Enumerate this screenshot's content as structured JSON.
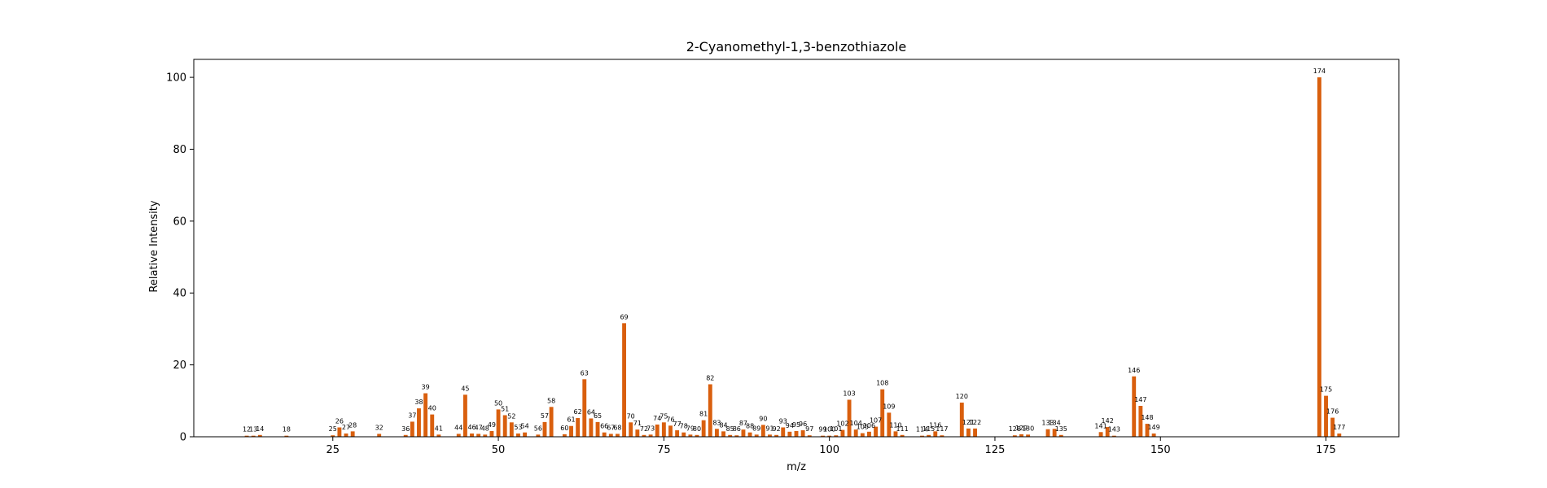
{
  "chart_data": {
    "type": "bar",
    "title": "2-Cyanomethyl-1,3-benzothiazole",
    "xlabel": "m/z",
    "ylabel": "Relative Intensity",
    "xlim": [
      4,
      186
    ],
    "ylim": [
      0,
      105
    ],
    "xticks": [
      25,
      50,
      75,
      100,
      125,
      150,
      175
    ],
    "yticks": [
      0,
      20,
      40,
      60,
      80,
      100
    ],
    "grid": false,
    "bar_color": "#d95f0e",
    "series": [
      {
        "x": [
          12,
          13,
          14,
          18,
          25,
          26,
          27,
          28,
          32,
          36,
          37,
          38,
          39,
          40,
          41,
          44,
          45,
          46,
          47,
          48,
          49,
          50,
          51,
          52,
          53,
          54,
          56,
          57,
          58,
          60,
          61,
          62,
          63,
          64,
          65,
          66,
          67,
          68,
          69,
          70,
          71,
          72,
          73,
          74,
          75,
          76,
          77,
          78,
          79,
          80,
          81,
          82,
          83,
          84,
          85,
          86,
          87,
          88,
          89,
          90,
          91,
          92,
          93,
          94,
          95,
          96,
          97,
          99,
          100,
          101,
          102,
          103,
          104,
          105,
          106,
          107,
          108,
          109,
          110,
          111,
          114,
          115,
          116,
          117,
          120,
          121,
          122,
          128,
          129,
          130,
          133,
          134,
          135,
          141,
          142,
          143,
          146,
          147,
          148,
          149,
          174,
          175,
          176,
          177
        ],
        "values": [
          0.3,
          0.3,
          0.5,
          0.3,
          0.4,
          2.6,
          0.9,
          1.5,
          0.8,
          0.5,
          4.2,
          7.9,
          12.1,
          6.2,
          0.6,
          0.8,
          11.7,
          0.9,
          0.8,
          0.6,
          1.6,
          7.6,
          6.0,
          4.0,
          0.9,
          1.2,
          0.6,
          4.1,
          8.3,
          0.7,
          3.0,
          5.2,
          16.0,
          5.1,
          4.1,
          1.2,
          0.8,
          0.8,
          31.6,
          4.0,
          2.0,
          0.5,
          0.6,
          3.4,
          4.0,
          3.1,
          1.8,
          1.2,
          0.6,
          0.5,
          4.6,
          14.6,
          2.2,
          1.5,
          0.5,
          0.4,
          2.0,
          1.2,
          0.6,
          3.3,
          0.6,
          0.5,
          2.6,
          1.4,
          1.6,
          1.8,
          0.4,
          0.3,
          0.3,
          0.4,
          1.9,
          10.3,
          2.0,
          1.0,
          1.4,
          2.8,
          13.2,
          6.7,
          1.5,
          0.5,
          0.3,
          0.5,
          1.5,
          0.4,
          9.5,
          2.3,
          2.3,
          0.4,
          0.7,
          0.6,
          2.1,
          2.2,
          0.5,
          1.3,
          2.7,
          0.3,
          16.8,
          8.6,
          3.6,
          0.9,
          100.0,
          11.4,
          5.3,
          0.9
        ]
      }
    ]
  }
}
